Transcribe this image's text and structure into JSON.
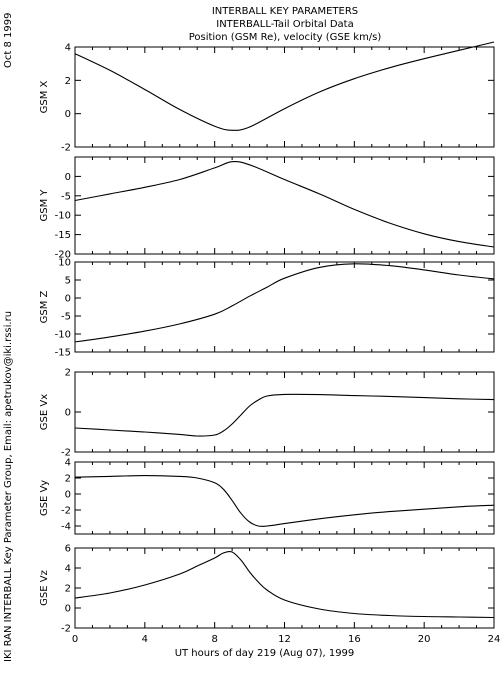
{
  "header": {
    "line1": "INTERBALL KEY PARAMETERS",
    "line2": "INTERBALL-Tail Orbital Data",
    "line3": "Position (GSM Re), velocity (GSE km/s)"
  },
  "side_date": "Oct  8 1999",
  "side_credit": "IKI RAN INTERBALL Key Parameter Group, Email: apetrukov@iki.rssi.ru",
  "chart_data": {
    "type": "line",
    "xlabel": "UT hours of day 219 (Aug 07), 1999",
    "xlim": [
      0,
      24
    ],
    "xticks": [
      0,
      4,
      8,
      12,
      16,
      20,
      24
    ],
    "panels": [
      {
        "ylabel": "GSM X",
        "ylim": [
          -2,
          4
        ],
        "yticks": [
          -2,
          0,
          2,
          4
        ],
        "x": [
          0,
          2,
          4,
          6,
          8,
          9,
          10,
          12,
          14,
          16,
          18,
          20,
          22,
          24
        ],
        "y": [
          3.6,
          2.6,
          1.45,
          0.25,
          -0.75,
          -1.0,
          -0.8,
          0.3,
          1.3,
          2.1,
          2.75,
          3.3,
          3.8,
          4.3
        ]
      },
      {
        "ylabel": "GSM Y",
        "ylim": [
          -20,
          5
        ],
        "yticks": [
          -20,
          -15,
          -10,
          -5,
          0
        ],
        "x": [
          0,
          2,
          4,
          6,
          8,
          9,
          10,
          12,
          14,
          16,
          18,
          20,
          22,
          24
        ],
        "y": [
          -6.2,
          -4.5,
          -2.8,
          -0.8,
          2.2,
          3.8,
          3.0,
          -0.8,
          -4.5,
          -8.5,
          -12.0,
          -14.8,
          -16.8,
          -18.2
        ]
      },
      {
        "ylabel": "GSM Z",
        "ylim": [
          -15,
          10
        ],
        "yticks": [
          -15,
          -10,
          -5,
          0,
          5,
          10
        ],
        "x": [
          0,
          2,
          4,
          6,
          8,
          9,
          10,
          11,
          12,
          14,
          16,
          18,
          20,
          22,
          24
        ],
        "y": [
          -12.2,
          -10.8,
          -9.2,
          -7.2,
          -4.5,
          -2.2,
          0.5,
          3.0,
          5.5,
          8.5,
          9.5,
          9.0,
          7.8,
          6.4,
          5.3
        ]
      },
      {
        "ylabel": "GSE Vx",
        "ylim": [
          -2,
          2
        ],
        "yticks": [
          -2,
          0,
          2
        ],
        "x": [
          0,
          2,
          4,
          6,
          7,
          8,
          8.5,
          9,
          9.5,
          10,
          10.5,
          11,
          12,
          14,
          16,
          18,
          20,
          22,
          24
        ],
        "y": [
          -0.8,
          -0.9,
          -1.0,
          -1.12,
          -1.2,
          -1.15,
          -0.95,
          -0.6,
          -0.15,
          0.3,
          0.6,
          0.8,
          0.88,
          0.87,
          0.82,
          0.78,
          0.72,
          0.66,
          0.62
        ]
      },
      {
        "ylabel": "GSE Vy",
        "ylim": [
          -5,
          4
        ],
        "yticks": [
          -4,
          -2,
          0,
          2,
          4
        ],
        "x": [
          0,
          2,
          4,
          6,
          7,
          8,
          8.5,
          9,
          9.5,
          10,
          10.5,
          11,
          12,
          14,
          16,
          18,
          20,
          22,
          24
        ],
        "y": [
          2.1,
          2.2,
          2.3,
          2.2,
          2.0,
          1.4,
          0.6,
          -0.8,
          -2.4,
          -3.5,
          -4.0,
          -4.0,
          -3.7,
          -3.1,
          -2.6,
          -2.2,
          -1.9,
          -1.6,
          -1.4
        ]
      },
      {
        "ylabel": "GSE Vz",
        "ylim": [
          -2,
          6
        ],
        "yticks": [
          -2,
          0,
          2,
          4,
          6
        ],
        "x": [
          0,
          2,
          4,
          6,
          7,
          8,
          8.5,
          9,
          9.5,
          10,
          10.5,
          11,
          12,
          14,
          16,
          18,
          20,
          22,
          24
        ],
        "y": [
          1.0,
          1.5,
          2.3,
          3.4,
          4.2,
          5.0,
          5.5,
          5.6,
          4.8,
          3.6,
          2.6,
          1.8,
          0.8,
          -0.1,
          -0.55,
          -0.75,
          -0.85,
          -0.9,
          -0.95
        ]
      }
    ]
  }
}
